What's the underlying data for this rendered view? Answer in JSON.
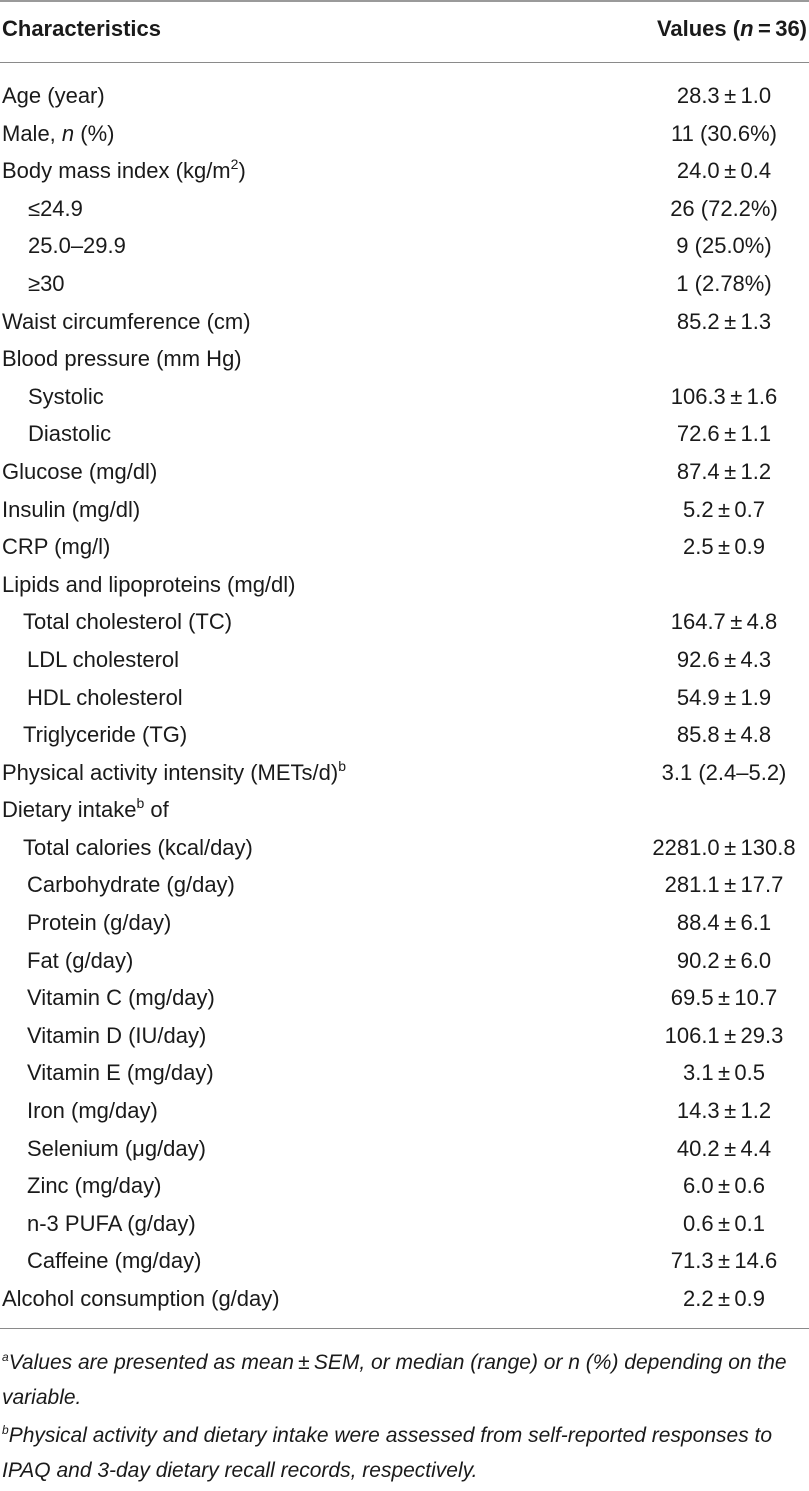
{
  "header": {
    "col1": "Characteristics",
    "col2_prefix": "Values (",
    "col2_n": "n",
    "col2_suffix": " = 36)"
  },
  "rows": [
    {
      "label": "Age (year)",
      "value": "28.3 ± 1.0"
    },
    {
      "label_pre": "Male, ",
      "label_italic": "n",
      "label_post": " (%)",
      "value": "11 (30.6%)"
    },
    {
      "label_pre": "Body mass index (kg/m",
      "label_sup": "2",
      "label_post": ")",
      "value": "24.0 ± 0.4"
    },
    {
      "label": "≤24.9",
      "value": "26 (72.2%)"
    },
    {
      "label": "25.0–29.9",
      "value": "9 (25.0%)"
    },
    {
      "label": "≥30",
      "value": "1 (2.78%)"
    },
    {
      "label": "Waist circumference (cm)",
      "value": "85.2 ± 1.3"
    },
    {
      "label": "Blood pressure (mm Hg)",
      "value": ""
    },
    {
      "label": "Systolic",
      "value": "106.3 ± 1.6"
    },
    {
      "label": "Diastolic",
      "value": "72.6 ± 1.1"
    },
    {
      "label": "Glucose (mg/dl)",
      "value": "87.4 ± 1.2"
    },
    {
      "label": "Insulin (mg/dl)",
      "value": "5.2 ± 0.7"
    },
    {
      "label": "CRP (mg/l)",
      "value": "2.5 ± 0.9"
    },
    {
      "label": "Lipids and lipoproteins (mg/dl)",
      "value": ""
    },
    {
      "label": "Total cholesterol (TC)",
      "value": "164.7 ± 4.8"
    },
    {
      "label": "LDL cholesterol",
      "value": "92.6 ± 4.3"
    },
    {
      "label": "HDL cholesterol",
      "value": "54.9 ± 1.9"
    },
    {
      "label": "Triglyceride (TG)",
      "value": "85.8 ± 4.8"
    },
    {
      "label_pre": "Physical activity intensity (METs/d)",
      "label_sup": "b",
      "label_post": "",
      "value": "3.1 (2.4–5.2)"
    },
    {
      "label_pre": "Dietary intake",
      "label_sup": "b",
      "label_post": " of",
      "value": ""
    },
    {
      "label": "Total calories (kcal/day)",
      "value": "2281.0 ± 130.8"
    },
    {
      "label": "Carbohydrate (g/day)",
      "value": "281.1 ± 17.7"
    },
    {
      "label": "Protein (g/day)",
      "value": "88.4 ± 6.1"
    },
    {
      "label": "Fat (g/day)",
      "value": "90.2 ± 6.0"
    },
    {
      "label": "Vitamin C (mg/day)",
      "value": "69.5 ± 10.7"
    },
    {
      "label": "Vitamin D (IU/day)",
      "value": "106.1 ± 29.3"
    },
    {
      "label": "Vitamin E (mg/day)",
      "value": "3.1 ± 0.5"
    },
    {
      "label": "Iron (mg/day)",
      "value": "14.3 ± 1.2"
    },
    {
      "label": "Selenium (μg/day)",
      "value": "40.2 ± 4.4"
    },
    {
      "label": "Zinc (mg/day)",
      "value": "6.0 ± 0.6"
    },
    {
      "label": "n-3 PUFA (g/day)",
      "value": "0.6 ± 0.1"
    },
    {
      "label": "Caffeine (mg/day)",
      "value": "71.3 ± 14.6"
    },
    {
      "label": "Alcohol consumption (g/day)",
      "value": "2.2 ± 0.9"
    }
  ],
  "footnotes": [
    {
      "mark": "a",
      "text": "Values are presented as mean ± SEM, or median (range) or n (%) depending on the variable."
    },
    {
      "mark": "b",
      "text": "Physical activity and dietary intake were assessed from self-reported responses to IPAQ and 3-day dietary recall records, respectively."
    }
  ]
}
